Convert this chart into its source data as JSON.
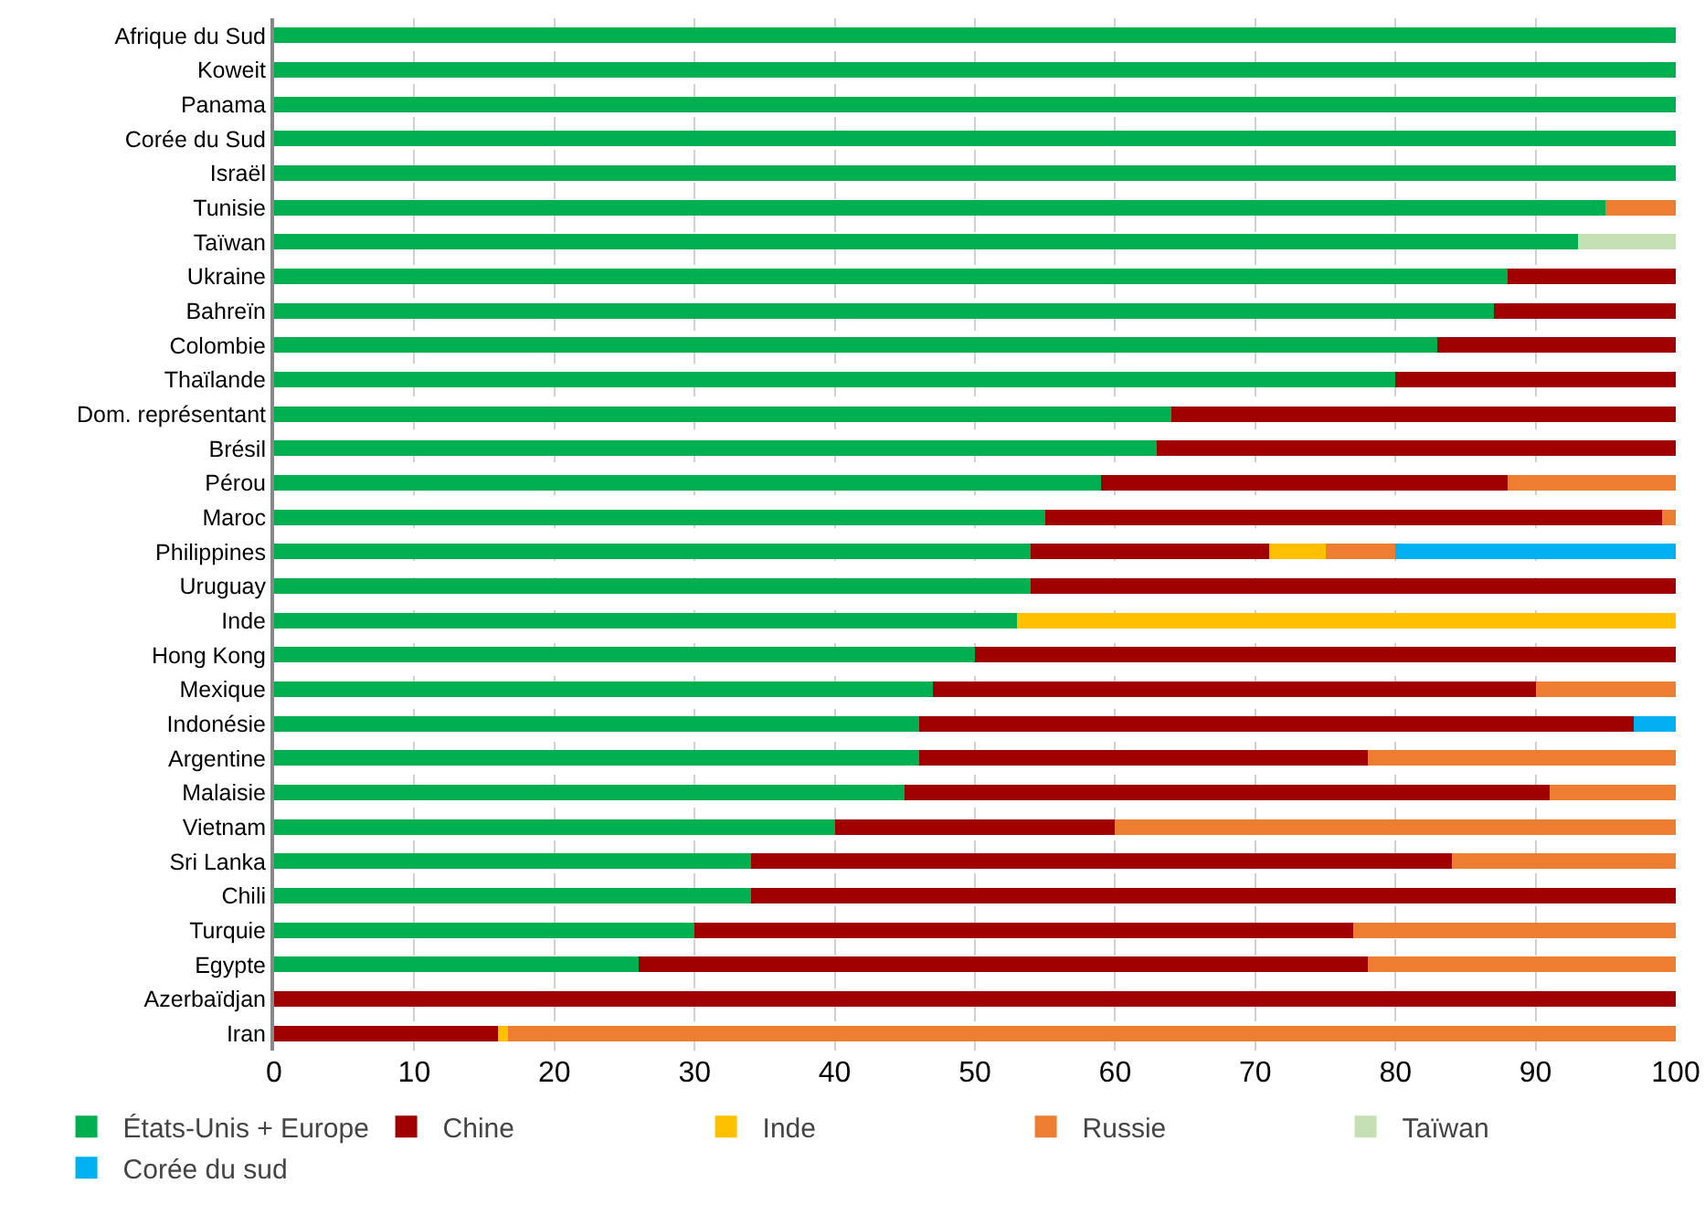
{
  "chart_data": {
    "type": "bar",
    "orientation": "horizontal",
    "stacked": true,
    "categories": [
      "Afrique du Sud",
      "Koweit",
      "Panama",
      "Corée du Sud",
      "Israël",
      "Tunisie",
      "Taïwan",
      "Ukraine",
      "Bahreïn",
      "Colombie",
      "Thaïlande",
      "Dom. représentant",
      "Brésil",
      "Pérou",
      "Maroc",
      "Philippines",
      "Uruguay",
      "Inde",
      "Hong Kong",
      "Mexique",
      "Indonésie",
      "Argentine",
      "Malaisie",
      "Vietnam",
      "Sri Lanka",
      "Chili",
      "Turquie",
      "Egypte",
      "Azerbaïdjan",
      "Iran"
    ],
    "series": [
      {
        "name": "États-Unis + Europe",
        "color": "#00b050",
        "values": [
          100,
          100,
          100,
          100,
          100,
          95,
          93,
          88,
          87,
          83,
          80,
          64,
          63,
          59,
          55,
          54,
          54,
          53,
          50,
          47,
          46,
          46,
          45,
          40,
          34,
          34,
          30,
          26,
          null,
          null
        ]
      },
      {
        "name": "Chine",
        "color": "#a00000",
        "values": [
          null,
          null,
          null,
          null,
          null,
          null,
          null,
          12,
          13,
          17,
          20,
          36,
          37,
          29,
          44,
          17,
          46,
          null,
          50,
          43,
          51,
          32,
          46,
          20,
          50,
          66,
          47,
          52,
          100,
          16
        ]
      },
      {
        "name": "Inde",
        "color": "#ffc000",
        "values": [
          null,
          null,
          null,
          null,
          null,
          null,
          null,
          null,
          null,
          null,
          null,
          null,
          null,
          null,
          null,
          4,
          null,
          47,
          null,
          null,
          null,
          null,
          null,
          null,
          null,
          null,
          null,
          null,
          null,
          0.7
        ]
      },
      {
        "name": "Russie",
        "color": "#ed7d31",
        "values": [
          null,
          null,
          null,
          null,
          null,
          5,
          null,
          null,
          null,
          null,
          null,
          null,
          null,
          12,
          1,
          5,
          null,
          null,
          null,
          10,
          null,
          22,
          9,
          40,
          16,
          null,
          23,
          22,
          null,
          83.3
        ]
      },
      {
        "name": "Taïwan",
        "color": "#c5e0b4",
        "values": [
          null,
          null,
          null,
          null,
          null,
          null,
          7,
          null,
          null,
          null,
          null,
          null,
          null,
          null,
          null,
          null,
          null,
          null,
          null,
          null,
          null,
          null,
          null,
          null,
          null,
          null,
          null,
          null,
          null,
          null
        ]
      },
      {
        "name": "Corée du sud",
        "color": "#00b0f0",
        "values": [
          null,
          null,
          null,
          null,
          null,
          null,
          null,
          null,
          null,
          null,
          null,
          null,
          null,
          null,
          null,
          20,
          null,
          null,
          null,
          null,
          3,
          null,
          null,
          null,
          null,
          null,
          null,
          null,
          null,
          null
        ]
      }
    ],
    "xlim": [
      0,
      100
    ],
    "xticks": [
      0,
      10,
      20,
      30,
      40,
      50,
      60,
      70,
      80,
      90,
      100
    ],
    "grid": "x",
    "legend": "bottom"
  }
}
